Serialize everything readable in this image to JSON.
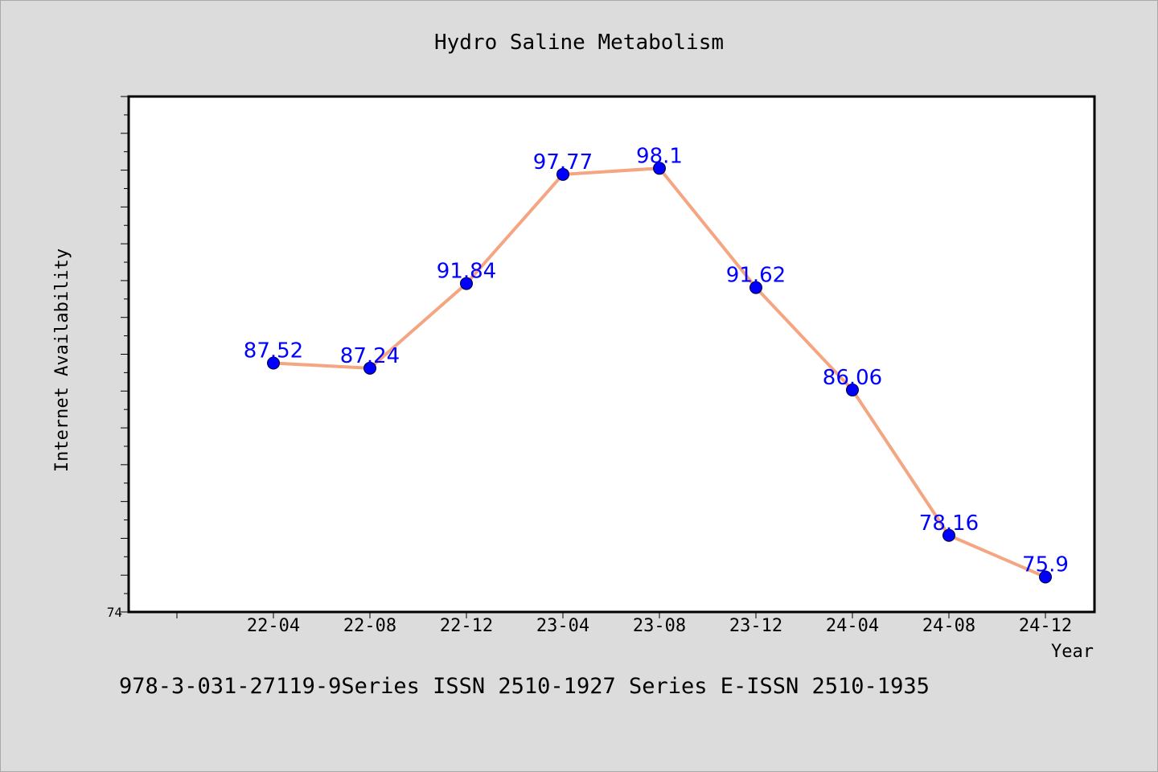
{
  "chart_data": {
    "type": "line",
    "title": "Hydro Saline Metabolism",
    "xlabel": "Year",
    "ylabel": "Internet Availability",
    "categories": [
      "22-04",
      "22-08",
      "22-12",
      "23-04",
      "23-08",
      "23-12",
      "24-04",
      "24-08",
      "24-12"
    ],
    "series": [
      {
        "values": [
          87.52,
          87.24,
          91.84,
          97.77,
          98.1,
          91.62,
          86.06,
          78.16,
          75.9
        ],
        "labels": [
          "87.52",
          "87.24",
          "91.84",
          "97.77",
          "98.1",
          "91.62",
          "86.06",
          "78.16",
          "75.9"
        ]
      }
    ],
    "ylim": [
      74,
      102
    ],
    "y_tick_labels": [
      "74"
    ],
    "grid": false,
    "colors": {
      "line": "#f4a582",
      "marker": "#0000ff",
      "data_label": "#0000ff",
      "plot_background": "#ffffff",
      "page_background": "#dcdcdc"
    }
  },
  "footer": "978-3-031-27119-9Series ISSN 2510-1927 Series E-ISSN 2510-1935"
}
